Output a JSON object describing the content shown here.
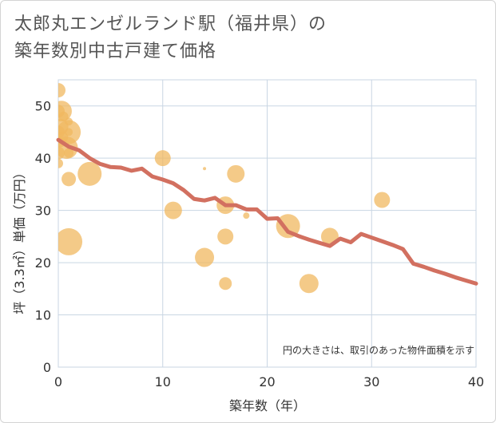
{
  "title_line1": "太郎丸エンゼルランド駅（福井県）の",
  "title_line2": "築年数別中古戸建て価格",
  "chart_data": {
    "type": "scatter",
    "xlabel": "築年数（年）",
    "ylabel": "坪（3.3㎡）単価（万円）",
    "xlim": [
      0,
      40
    ],
    "ylim": [
      0,
      55
    ],
    "xticks": [
      0,
      10,
      20,
      30,
      40
    ],
    "yticks": [
      0,
      10,
      20,
      30,
      40,
      50
    ],
    "grid": true,
    "note": "円の大きさは、取引のあった物件面積を示す",
    "bubble_color": "#f0b860",
    "line_color": "#d27060",
    "points": [
      {
        "x": 0,
        "y": 53,
        "s": 9
      },
      {
        "x": 0,
        "y": 49,
        "s": 8
      },
      {
        "x": 0.3,
        "y": 49,
        "s": 13
      },
      {
        "x": 0.2,
        "y": 46,
        "s": 10
      },
      {
        "x": 0.5,
        "y": 48,
        "s": 6
      },
      {
        "x": 0,
        "y": 45,
        "s": 8
      },
      {
        "x": 1,
        "y": 47,
        "s": 5
      },
      {
        "x": 1,
        "y": 45,
        "s": 15
      },
      {
        "x": 1,
        "y": 45,
        "s": 5
      },
      {
        "x": 0.4,
        "y": 44,
        "s": 7
      },
      {
        "x": 0.2,
        "y": 43,
        "s": 6
      },
      {
        "x": 0.8,
        "y": 42,
        "s": 14
      },
      {
        "x": 0,
        "y": 41,
        "s": 8
      },
      {
        "x": 1,
        "y": 41,
        "s": 6
      },
      {
        "x": 0,
        "y": 39,
        "s": 6
      },
      {
        "x": 1,
        "y": 36,
        "s": 9
      },
      {
        "x": 1,
        "y": 24,
        "s": 17
      },
      {
        "x": 3,
        "y": 37,
        "s": 15
      },
      {
        "x": 10,
        "y": 40,
        "s": 10
      },
      {
        "x": 11,
        "y": 30,
        "s": 11
      },
      {
        "x": 14,
        "y": 38,
        "s": 2
      },
      {
        "x": 14,
        "y": 21,
        "s": 12
      },
      {
        "x": 16,
        "y": 31,
        "s": 11
      },
      {
        "x": 16,
        "y": 25,
        "s": 10
      },
      {
        "x": 16,
        "y": 16,
        "s": 8
      },
      {
        "x": 17,
        "y": 37,
        "s": 11
      },
      {
        "x": 18,
        "y": 29,
        "s": 4
      },
      {
        "x": 22,
        "y": 27,
        "s": 15
      },
      {
        "x": 24,
        "y": 16,
        "s": 12
      },
      {
        "x": 26,
        "y": 25,
        "s": 11
      },
      {
        "x": 31,
        "y": 32,
        "s": 10
      }
    ],
    "trend": {
      "x": [
        0,
        1,
        2,
        3,
        4,
        5,
        6,
        7,
        8,
        9,
        10,
        11,
        12,
        13,
        14,
        15,
        16,
        17,
        18,
        19,
        20,
        21,
        22,
        23,
        24,
        25,
        26,
        27,
        28,
        29,
        30,
        31,
        32,
        33,
        34,
        35,
        36,
        37,
        38,
        39,
        40
      ],
      "y": [
        43.5,
        42.2,
        41.5,
        40,
        38.9,
        38.3,
        38.2,
        37.6,
        38,
        36.5,
        35.9,
        35.2,
        33.9,
        32.2,
        31.9,
        32.4,
        31,
        31,
        30.2,
        30.2,
        28.4,
        28.5,
        25.9,
        25.1,
        24.4,
        23.8,
        23.2,
        24.6,
        23.9,
        25.5,
        24.8,
        24.1,
        23.4,
        22.6,
        19.8,
        19.2,
        18.5,
        17.9,
        17.2,
        16.6,
        16
      ]
    }
  }
}
